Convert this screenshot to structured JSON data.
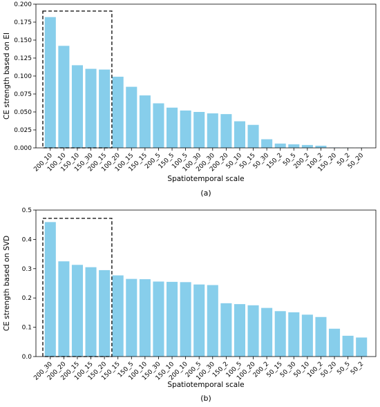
{
  "chart_data": [
    {
      "type": "bar",
      "caption": "(a)",
      "xlabel": "Spatiotemporal scale",
      "ylabel": "CE strength based on EI",
      "ylim": [
        0,
        0.2
      ],
      "yticks": [
        0.0,
        0.025,
        0.05,
        0.075,
        0.1,
        0.125,
        0.15,
        0.175,
        0.2
      ],
      "ytick_labels": [
        "0.000",
        "0.025",
        "0.050",
        "0.075",
        "0.100",
        "0.125",
        "0.150",
        "0.175",
        "0.200"
      ],
      "bar_color": "#87ceeb",
      "highlight_count": 5,
      "grid": false,
      "categories": [
        "200_10",
        "100_10",
        "150_10",
        "150_30",
        "200_15",
        "100_20",
        "100_15",
        "150_15",
        "200_5",
        "150_5",
        "100_5",
        "100_30",
        "200_30",
        "200_20",
        "50_10",
        "50_15",
        "50_30",
        "150_2",
        "50_5",
        "200_2",
        "100_2",
        "150_20",
        "50_2",
        "50_20"
      ],
      "values": [
        0.182,
        0.142,
        0.115,
        0.11,
        0.109,
        0.099,
        0.085,
        0.073,
        0.062,
        0.056,
        0.052,
        0.05,
        0.048,
        0.047,
        0.037,
        0.032,
        0.012,
        0.006,
        0.005,
        0.004,
        0.003,
        0.0005,
        0.0003,
        0.0002
      ]
    },
    {
      "type": "bar",
      "caption": "(b)",
      "xlabel": "Spatiotemporal scale",
      "ylabel": "CE strength based on SVD",
      "ylim": [
        0,
        0.5
      ],
      "yticks": [
        0,
        0.1,
        0.2,
        0.3,
        0.4,
        0.5
      ],
      "ytick_labels": [
        "0.0",
        "0.1",
        "0.2",
        "0.3",
        "0.4",
        "0.5"
      ],
      "bar_color": "#87ceeb",
      "highlight_count": 5,
      "grid": false,
      "categories": [
        "200_30",
        "200_20",
        "200_15",
        "100_15",
        "150_20",
        "150_15",
        "150_5",
        "100_10",
        "150_30",
        "150_10",
        "200_10",
        "200_5",
        "100_30",
        "150_2",
        "100_5",
        "100_20",
        "200_2",
        "50_15",
        "50_30",
        "50_10",
        "100_2",
        "50_20",
        "50_5",
        "50_2"
      ],
      "values": [
        0.459,
        0.325,
        0.313,
        0.305,
        0.295,
        0.277,
        0.265,
        0.264,
        0.256,
        0.255,
        0.254,
        0.246,
        0.244,
        0.182,
        0.179,
        0.175,
        0.166,
        0.155,
        0.151,
        0.143,
        0.135,
        0.095,
        0.071,
        0.065
      ]
    }
  ]
}
